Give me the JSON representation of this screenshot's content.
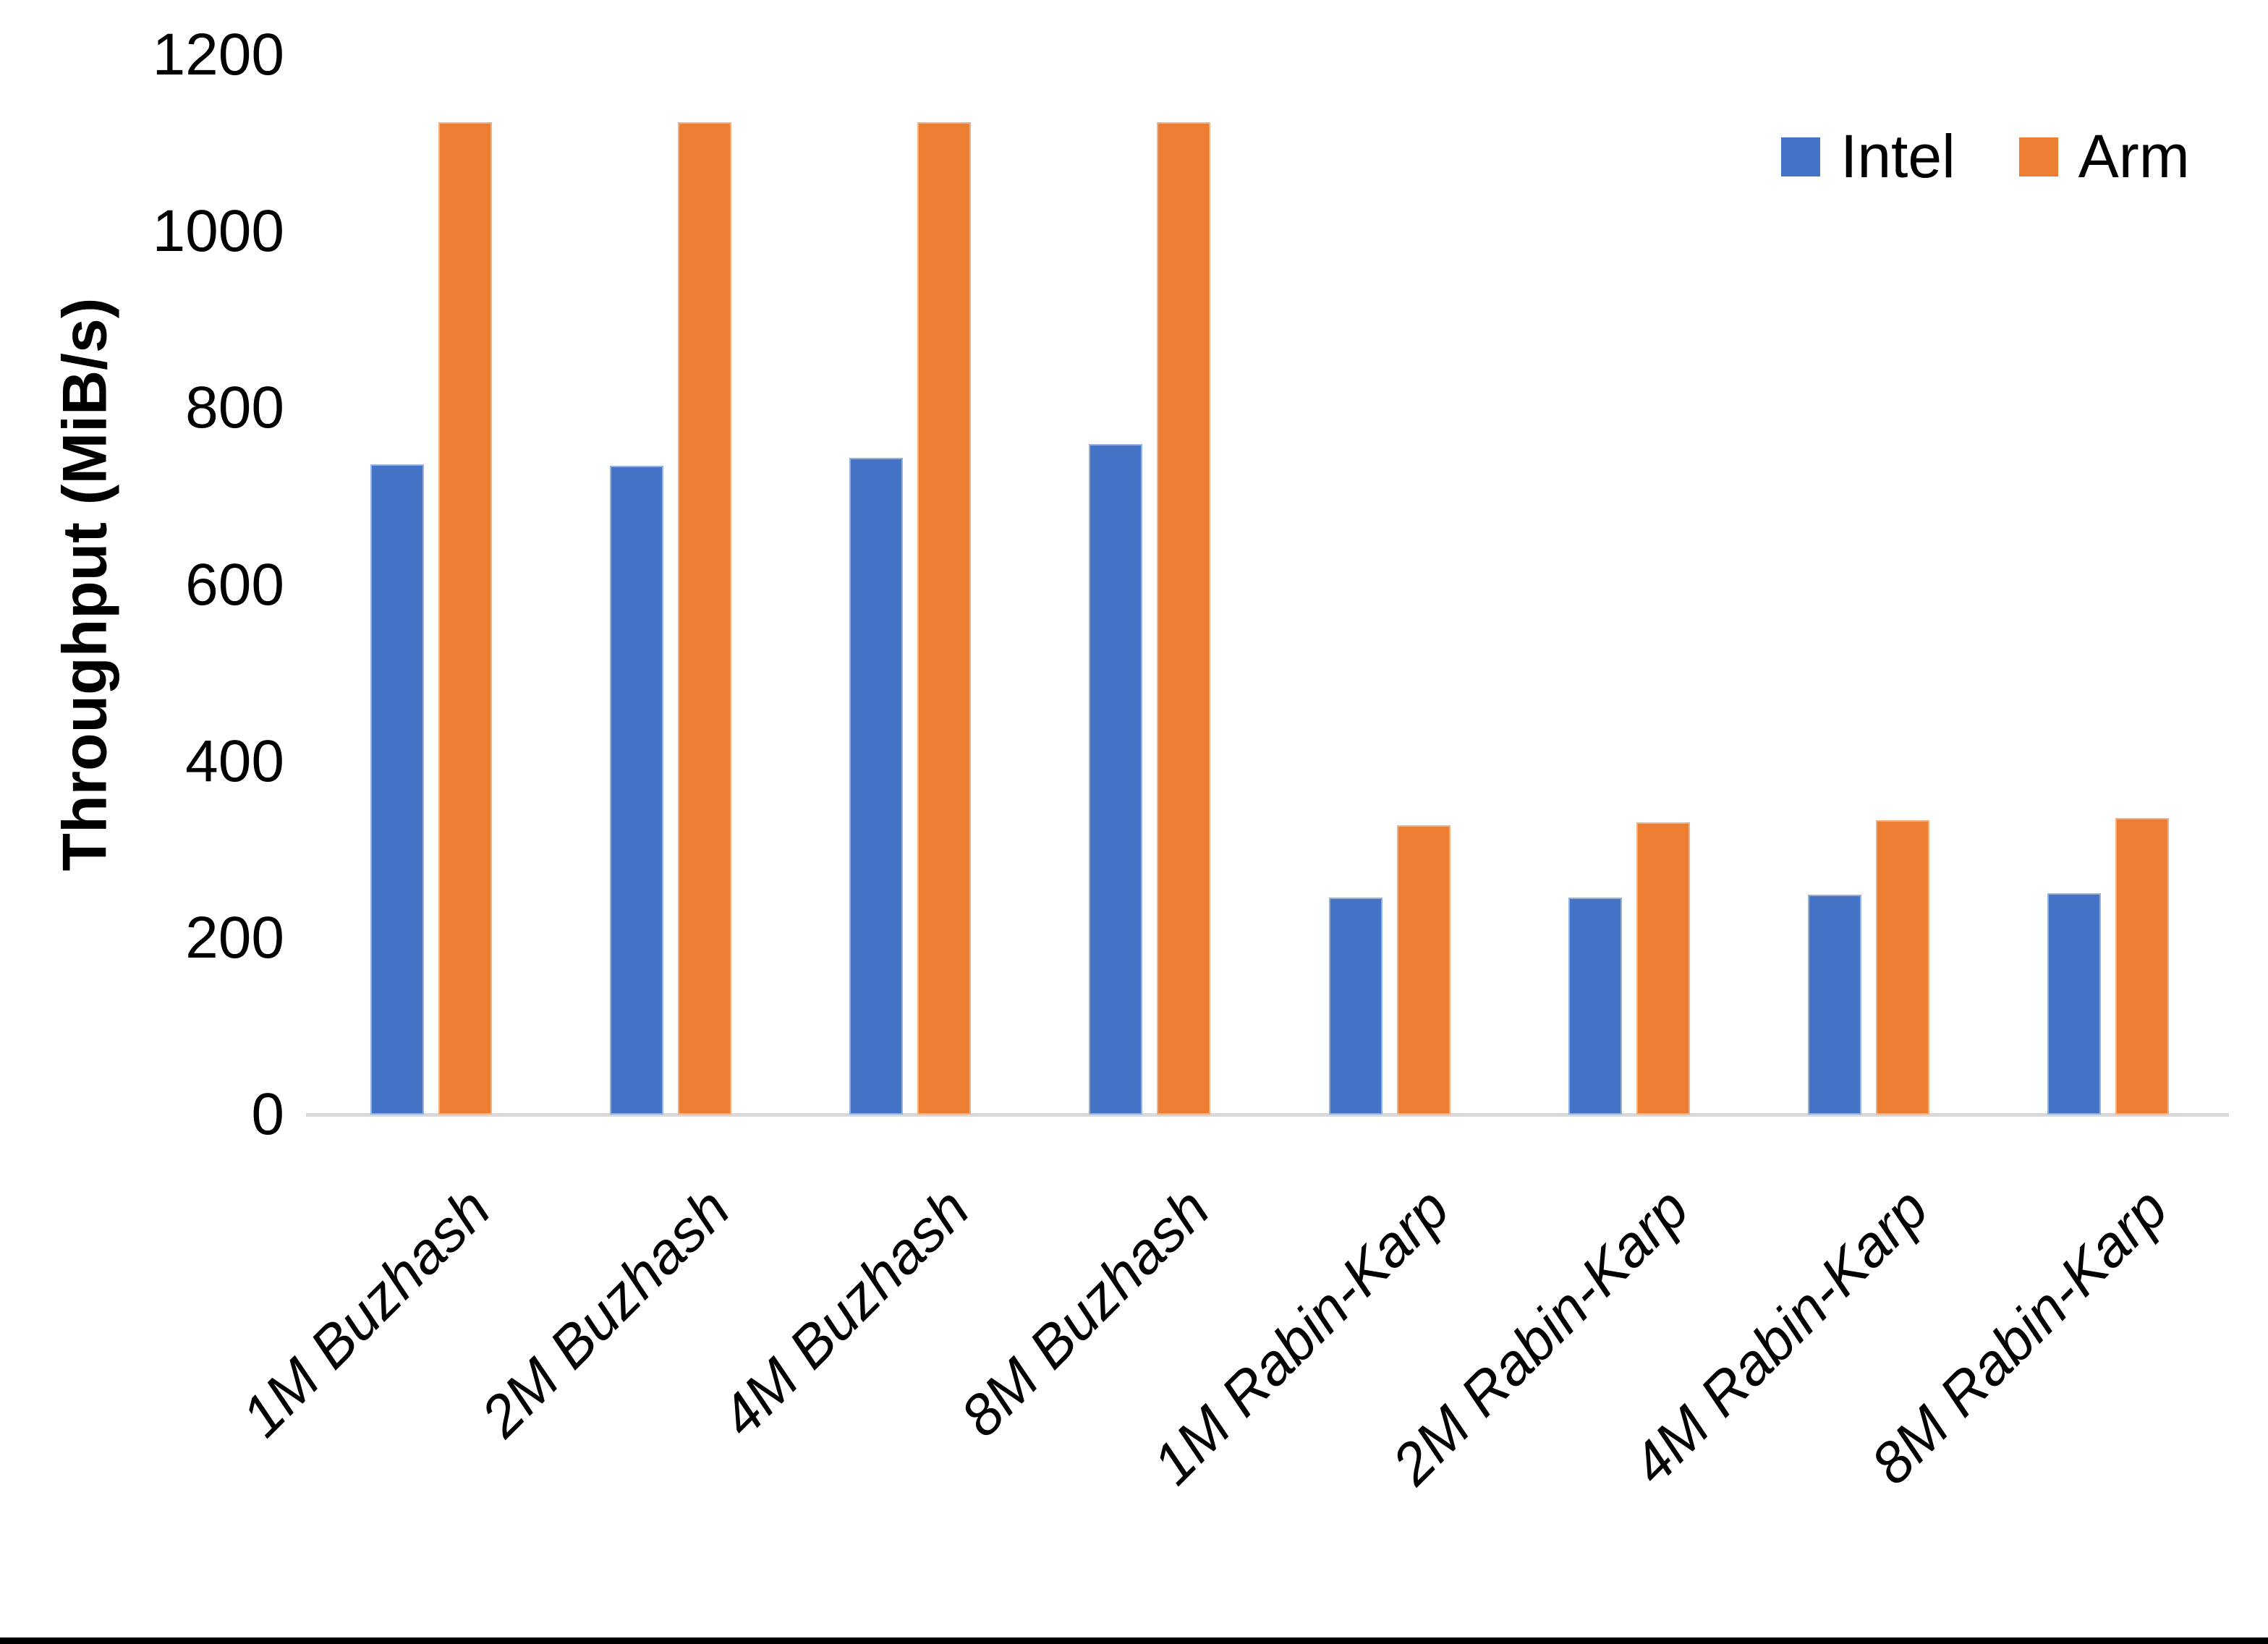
{
  "chart_data": {
    "type": "bar",
    "title": "",
    "xlabel": "",
    "ylabel": "Throughput (MiB/s)",
    "ylim": [
      0,
      1200
    ],
    "yticks": [
      0,
      200,
      400,
      600,
      800,
      1000,
      1200
    ],
    "grid": false,
    "legend_position": "top-right",
    "categories": [
      "1M Buzhash",
      "2M Buzhash",
      "4M Buzhash",
      "8M Buzhash",
      "1M Rabin-Karp",
      "2M Rabin-Karp",
      "4M Rabin-Karp",
      "8M Rabin-Karp"
    ],
    "series": [
      {
        "name": "Intel",
        "color": "#4472C4",
        "edge_color": "#96B0DE",
        "values": [
          736,
          735,
          744,
          759,
          246,
          246,
          249,
          251
        ]
      },
      {
        "name": "Arm",
        "color": "#ED7D31",
        "edge_color": "#F2B183",
        "values": [
          1124,
          1124,
          1124,
          1124,
          328,
          331,
          333,
          336
        ]
      }
    ]
  },
  "colors": {
    "background": "#FFFFFF",
    "axis_line": "#D9D9D9",
    "text": "#000000",
    "frame_bottom": "#000000"
  }
}
